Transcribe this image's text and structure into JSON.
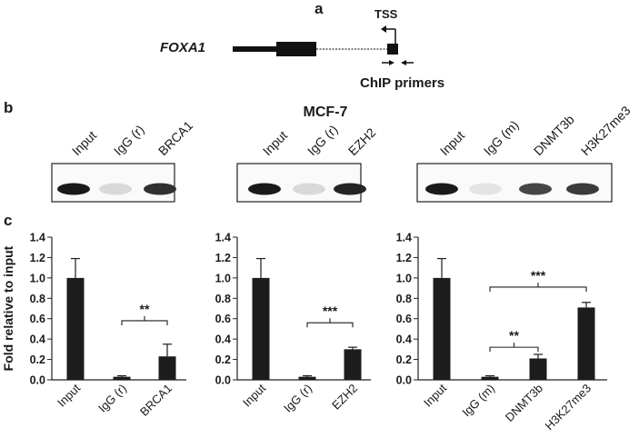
{
  "panel_labels": {
    "a": "a",
    "b": "b",
    "c": "c"
  },
  "gene_diagram": {
    "gene": "FOXA1",
    "tss_label": "TSS",
    "primers_label": "ChIP primers"
  },
  "gel": {
    "cell_line": "MCF-7",
    "blots": [
      {
        "lanes": [
          {
            "label": "Input",
            "intensity": 0.95
          },
          {
            "label": "IgG (r)",
            "intensity": 0.08
          },
          {
            "label": "BRCA1",
            "intensity": 0.85
          }
        ]
      },
      {
        "lanes": [
          {
            "label": "Input",
            "intensity": 0.95
          },
          {
            "label": "IgG (r)",
            "intensity": 0.08
          },
          {
            "label": "EZH2",
            "intensity": 0.9
          }
        ]
      },
      {
        "lanes": [
          {
            "label": "Input",
            "intensity": 0.95
          },
          {
            "label": "IgG (m)",
            "intensity": 0.03
          },
          {
            "label": "DNMT3b",
            "intensity": 0.75
          },
          {
            "label": "H3K27me3",
            "intensity": 0.8
          }
        ]
      }
    ]
  },
  "chart_data": [
    {
      "type": "bar",
      "ylabel": "Fold relative to input",
      "ylim": [
        0,
        1.4
      ],
      "yticks": [
        "0.0",
        "0.2",
        "0.4",
        "0.6",
        "0.8",
        "1.0",
        "1.2",
        "1.4"
      ],
      "categories": [
        "Input",
        "IgG (r)",
        "BRCA1"
      ],
      "values": [
        1.0,
        0.03,
        0.23
      ],
      "errors": [
        0.19,
        0.01,
        0.12
      ],
      "significance": [
        {
          "from": 1,
          "to": 2,
          "label": "**",
          "level": 0.58
        }
      ]
    },
    {
      "type": "bar",
      "ylabel": "",
      "ylim": [
        0,
        1.4
      ],
      "yticks": [
        "0.0",
        "0.2",
        "0.4",
        "0.6",
        "0.8",
        "1.0",
        "1.2",
        "1.4"
      ],
      "categories": [
        "Input",
        "IgG (r)",
        "EZH2"
      ],
      "values": [
        1.0,
        0.03,
        0.3
      ],
      "errors": [
        0.19,
        0.01,
        0.02
      ],
      "significance": [
        {
          "from": 1,
          "to": 2,
          "label": "***",
          "level": 0.56
        }
      ]
    },
    {
      "type": "bar",
      "ylabel": "",
      "ylim": [
        0,
        1.4
      ],
      "yticks": [
        "0.0",
        "0.2",
        "0.4",
        "0.6",
        "0.8",
        "1.0",
        "1.2",
        "1.4"
      ],
      "categories": [
        "Input",
        "IgG (m)",
        "DNMT3b",
        "H3K27me3"
      ],
      "values": [
        1.0,
        0.03,
        0.21,
        0.71
      ],
      "errors": [
        0.19,
        0.01,
        0.04,
        0.05
      ],
      "significance": [
        {
          "from": 1,
          "to": 2,
          "label": "**",
          "level": 0.32
        },
        {
          "from": 1,
          "to": 3,
          "label": "***",
          "level": 0.91
        }
      ]
    }
  ]
}
